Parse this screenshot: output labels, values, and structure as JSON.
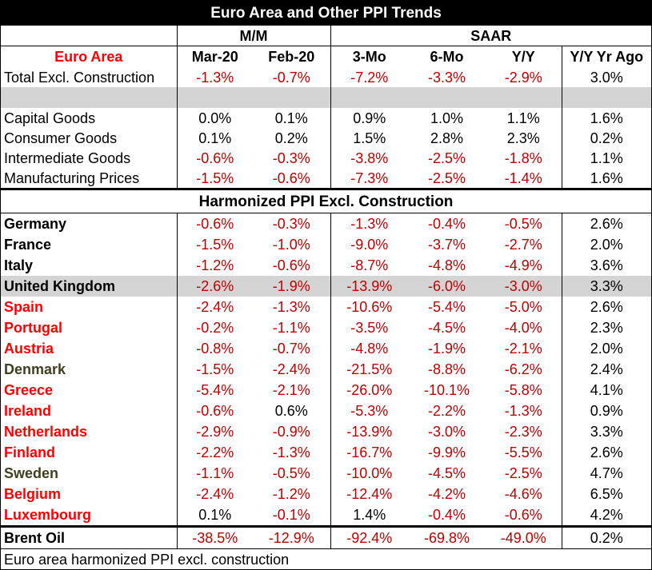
{
  "title": "Euro Area and Other PPI Trends",
  "groups": {
    "mm": "M/M",
    "saar": "SAAR"
  },
  "header": {
    "region": "Euro Area",
    "cols": [
      "Mar-20",
      "Feb-20",
      "3-Mo",
      "6-Mo",
      "Y/Y",
      "Y/Y Yr Ago"
    ]
  },
  "euro_rows": [
    {
      "label": "Total Excl. Construction",
      "values": [
        "-1.3%",
        "-0.7%",
        "-7.2%",
        "-3.3%",
        "-2.9%",
        "3.0%"
      ]
    },
    {
      "label": "Capital Goods",
      "values": [
        "0.0%",
        "0.1%",
        "0.9%",
        "1.0%",
        "1.1%",
        "1.6%"
      ]
    },
    {
      "label": "Consumer Goods",
      "values": [
        "0.1%",
        "0.2%",
        "1.5%",
        "2.8%",
        "2.3%",
        "0.2%"
      ]
    },
    {
      "label": "Intermediate Goods",
      "values": [
        "-0.6%",
        "-0.3%",
        "-3.8%",
        "-2.5%",
        "-1.8%",
        "1.1%"
      ]
    },
    {
      "label": "Manufacturing Prices",
      "values": [
        "-1.5%",
        "-0.6%",
        "-7.3%",
        "-2.5%",
        "-1.4%",
        "1.6%"
      ]
    }
  ],
  "section_title": "Harmonized PPI Excl. Construction",
  "country_rows": [
    {
      "label": "Germany",
      "values": [
        "-0.6%",
        "-0.3%",
        "-1.3%",
        "-0.4%",
        "-0.5%",
        "2.6%"
      ]
    },
    {
      "label": "France",
      "values": [
        "-1.5%",
        "-1.0%",
        "-9.0%",
        "-3.7%",
        "-2.7%",
        "2.0%"
      ]
    },
    {
      "label": "Italy",
      "values": [
        "-1.2%",
        "-0.6%",
        "-8.7%",
        "-4.8%",
        "-4.9%",
        "3.6%"
      ]
    },
    {
      "label": "United Kingdom",
      "values": [
        "-2.6%",
        "-1.9%",
        "-13.9%",
        "-6.0%",
        "-3.0%",
        "3.3%"
      ]
    },
    {
      "label": "Spain",
      "values": [
        "-2.4%",
        "-1.3%",
        "-10.6%",
        "-5.4%",
        "-5.0%",
        "2.6%"
      ]
    },
    {
      "label": "Portugal",
      "values": [
        "-0.2%",
        "-1.1%",
        "-3.5%",
        "-4.5%",
        "-4.0%",
        "2.3%"
      ]
    },
    {
      "label": "Austria",
      "values": [
        "-0.8%",
        "-0.7%",
        "-4.8%",
        "-1.9%",
        "-2.1%",
        "2.0%"
      ]
    },
    {
      "label": "Denmark",
      "values": [
        "-1.5%",
        "-2.4%",
        "-21.5%",
        "-8.8%",
        "-6.2%",
        "2.4%"
      ]
    },
    {
      "label": "Greece",
      "values": [
        "-5.4%",
        "-2.1%",
        "-26.0%",
        "-10.1%",
        "-5.8%",
        "4.1%"
      ]
    },
    {
      "label": "Ireland",
      "values": [
        "-0.6%",
        "0.6%",
        "-5.3%",
        "-2.2%",
        "-1.3%",
        "0.9%"
      ]
    },
    {
      "label": "Netherlands",
      "values": [
        "-2.9%",
        "-0.9%",
        "-13.9%",
        "-3.0%",
        "-2.3%",
        "3.3%"
      ]
    },
    {
      "label": "Finland",
      "values": [
        "-2.2%",
        "-1.3%",
        "-16.7%",
        "-9.9%",
        "-5.5%",
        "2.6%"
      ]
    },
    {
      "label": "Sweden",
      "values": [
        "-1.1%",
        "-0.5%",
        "-10.0%",
        "-4.5%",
        "-2.5%",
        "4.7%"
      ]
    },
    {
      "label": "Belgium",
      "values": [
        "-2.4%",
        "-1.2%",
        "-12.4%",
        "-4.2%",
        "-4.6%",
        "6.5%"
      ]
    },
    {
      "label": "Luxembourg",
      "values": [
        "0.1%",
        "-0.1%",
        "1.4%",
        "-0.4%",
        "-0.6%",
        "4.2%"
      ]
    }
  ],
  "oil_row": {
    "label": "Brent Oil",
    "values": [
      "-38.5%",
      "-12.9%",
      "-92.4%",
      "-69.8%",
      "-49.0%",
      "0.2%"
    ]
  },
  "footnote": "Euro area harmonized PPI excl. construction",
  "colors": {
    "negative": "#c00000",
    "euro_label": "#ff0000",
    "non_euro_label": "#404020",
    "highlight_row": "#d4d4d4"
  }
}
